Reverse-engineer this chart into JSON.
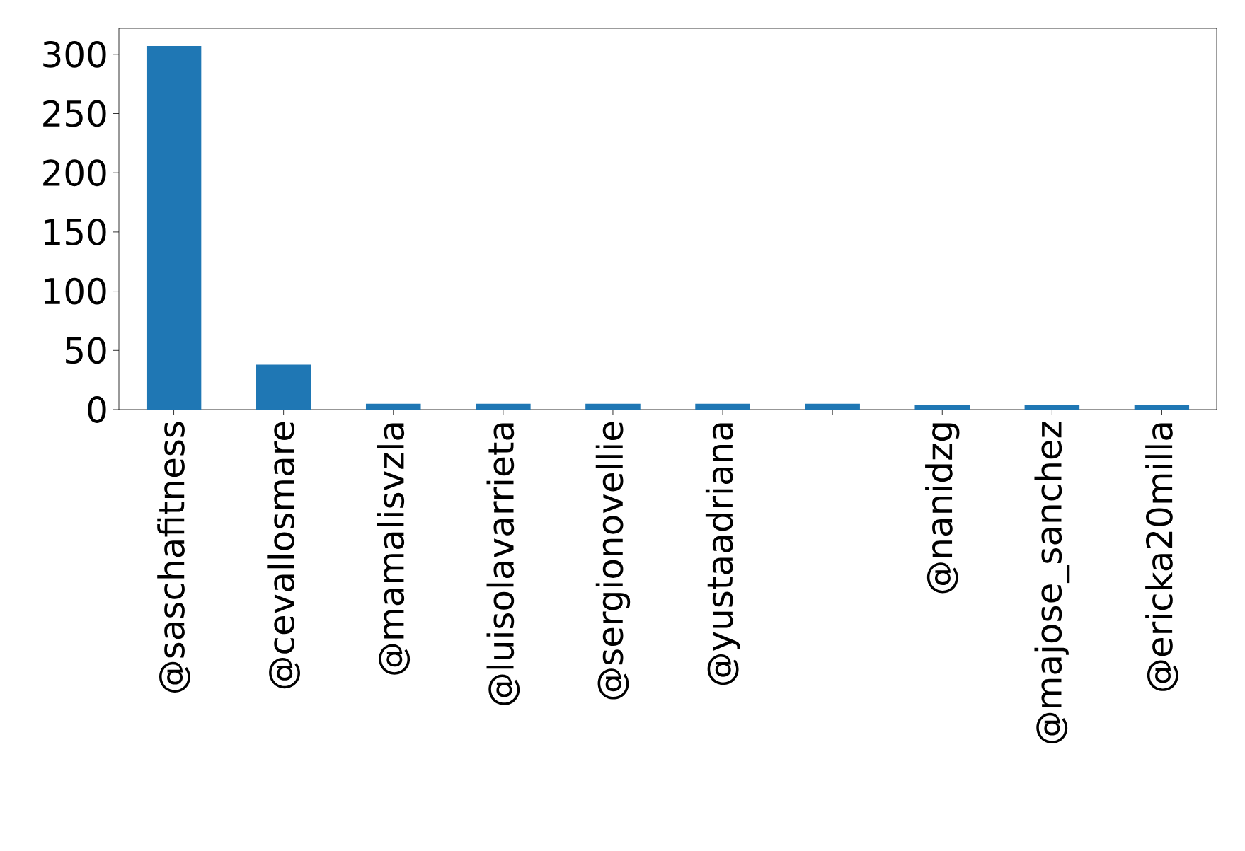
{
  "chart_data": {
    "type": "bar",
    "categories": [
      "@saschafitness",
      "@cevallosmare",
      "@mamalisvzla",
      "@luisolavarrieta",
      "@sergionovellie",
      "@yustaadriana",
      null,
      "@nanidzg",
      "@majose_sanchez",
      "@ericka20milla"
    ],
    "values": [
      307,
      38,
      5,
      5,
      5,
      5,
      5,
      4,
      4,
      4
    ],
    "color": "#1f77b4",
    "ylim": [
      0,
      322
    ],
    "yticks": [
      0,
      50,
      100,
      150,
      200,
      250,
      300
    ],
    "grid": false
  }
}
